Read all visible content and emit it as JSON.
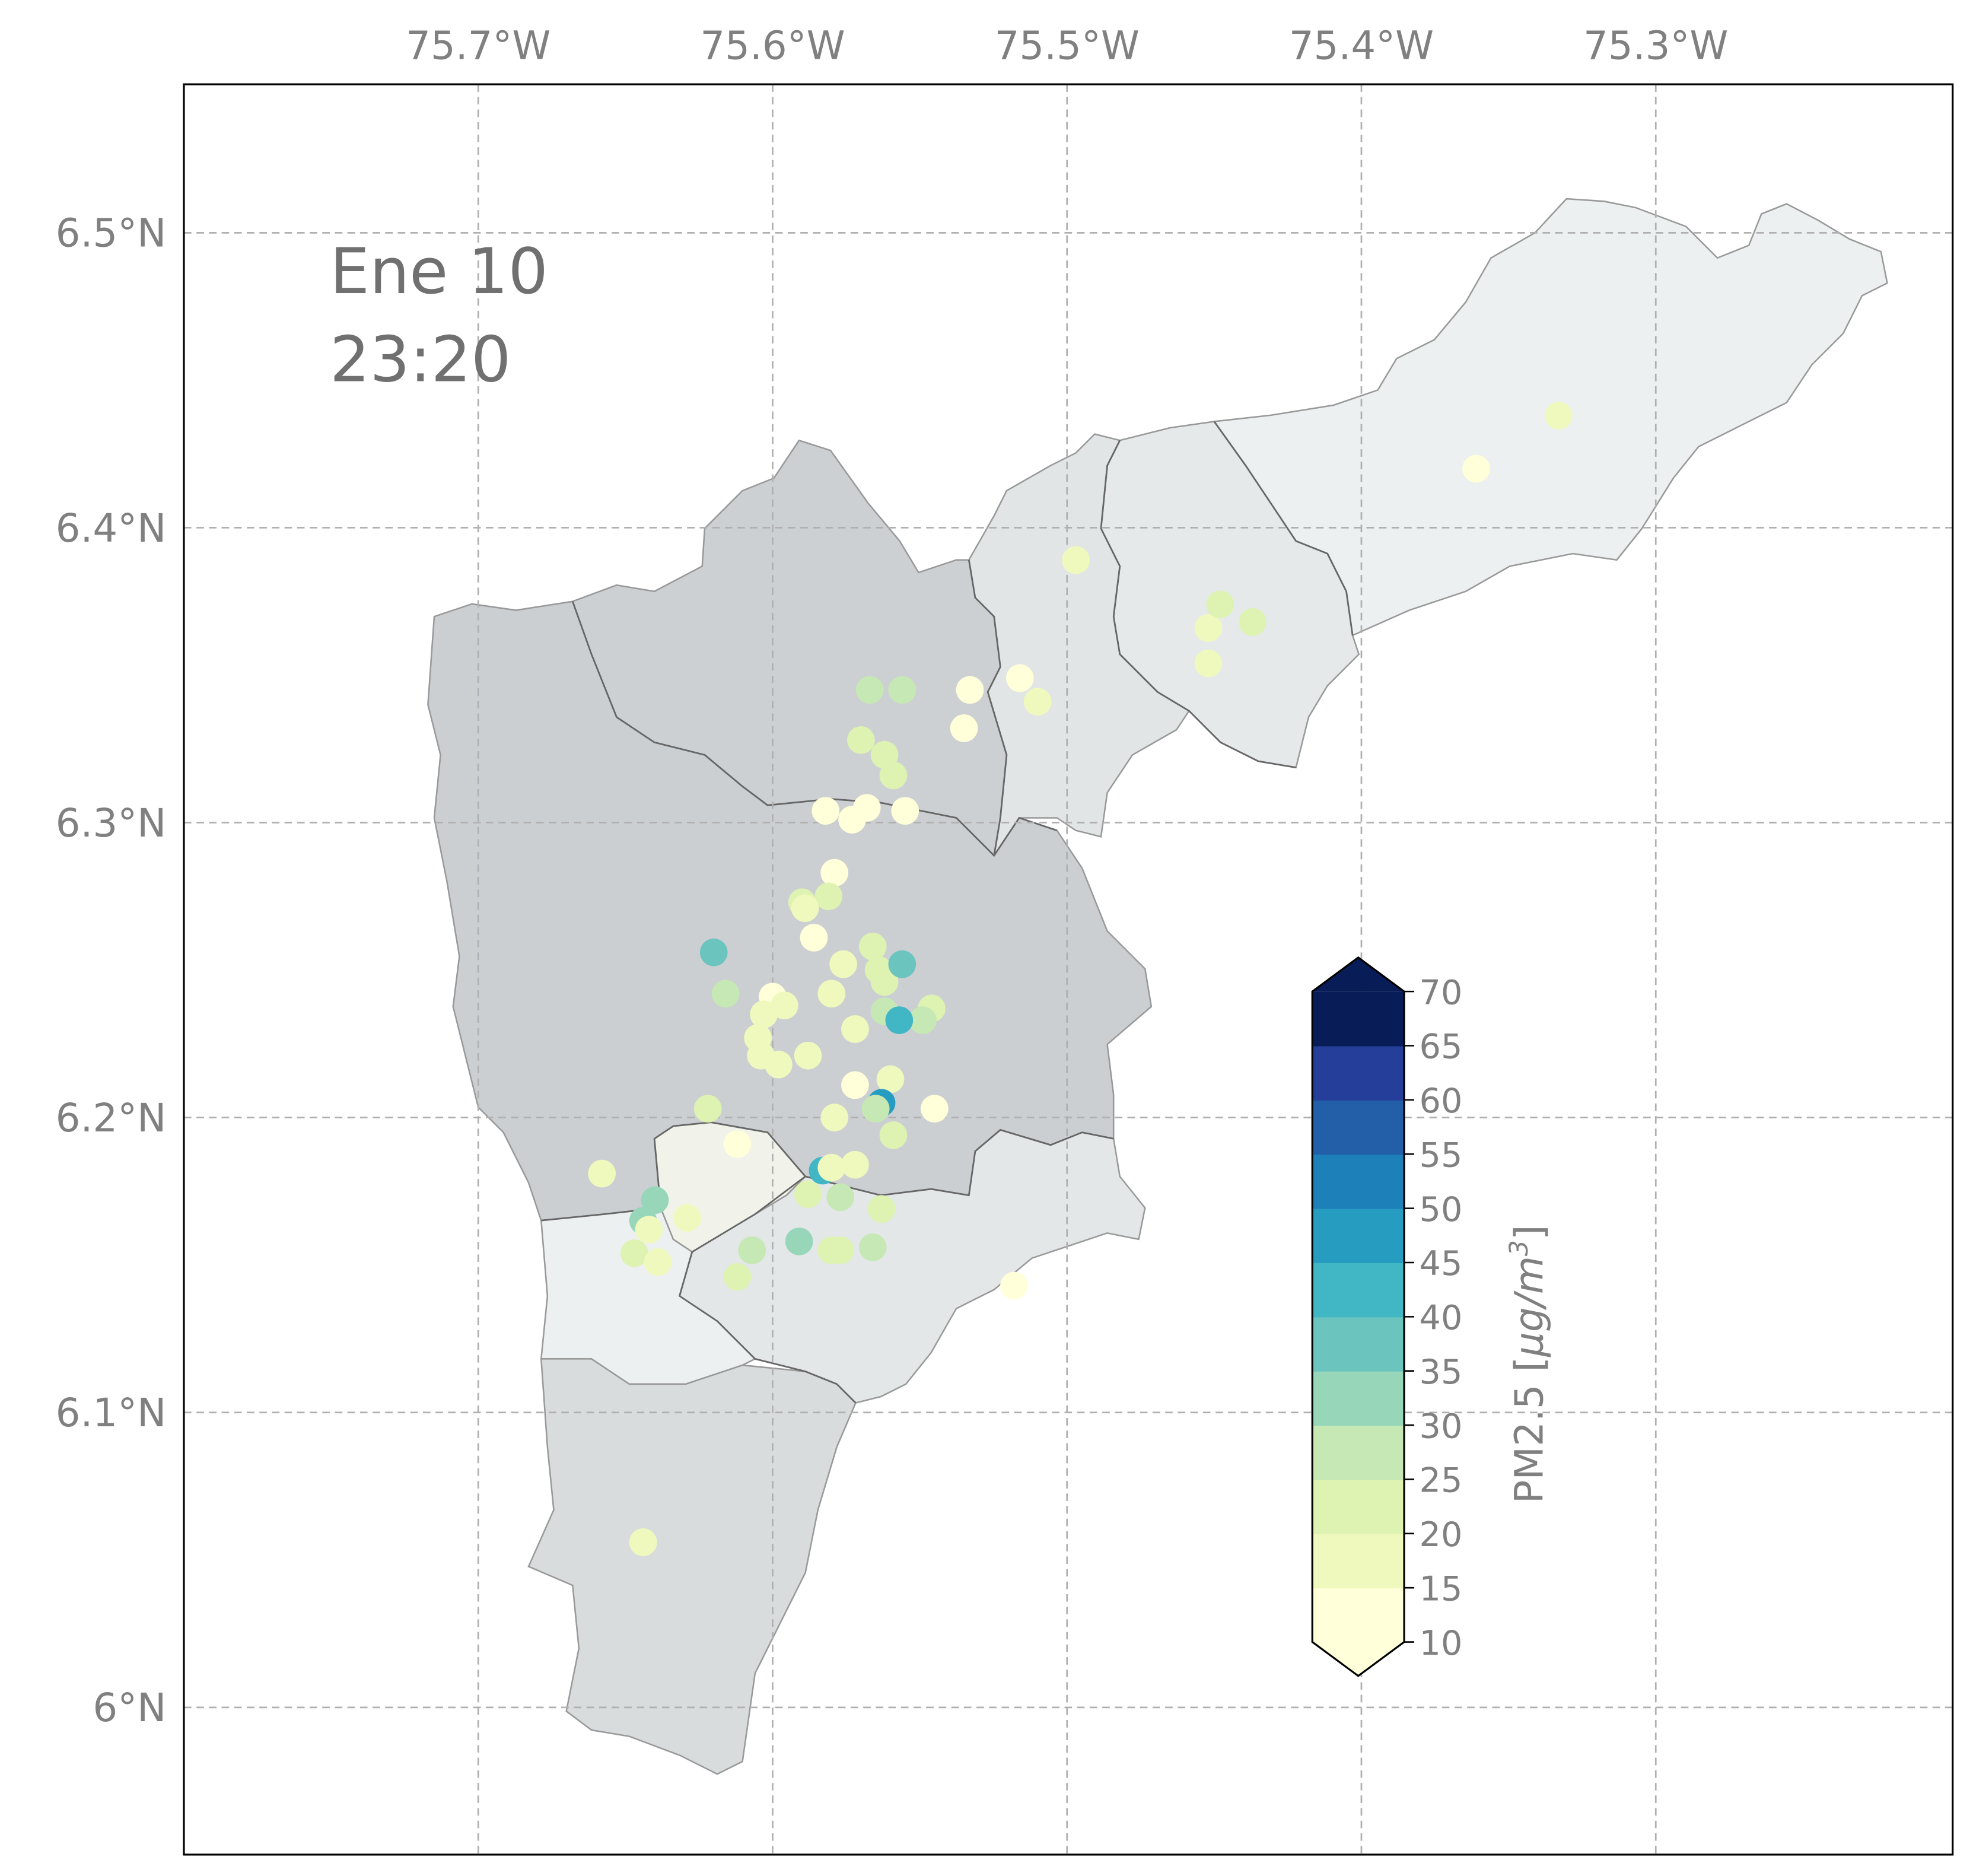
{
  "annotation": {
    "date": "Ene 10",
    "time": "23:20"
  },
  "axes": {
    "lon_ticks": [
      {
        "value": -75.7,
        "label": "75.7°W"
      },
      {
        "value": -75.6,
        "label": "75.6°W"
      },
      {
        "value": -75.5,
        "label": "75.5°W"
      },
      {
        "value": -75.4,
        "label": "75.4°W"
      },
      {
        "value": -75.3,
        "label": "75.3°W"
      }
    ],
    "lat_ticks": [
      {
        "value": 6.5,
        "label": "6.5°N"
      },
      {
        "value": 6.4,
        "label": "6.4°N"
      },
      {
        "value": 6.3,
        "label": "6.3°N"
      },
      {
        "value": 6.2,
        "label": "6.2°N"
      },
      {
        "value": 6.1,
        "label": "6.1°N"
      },
      {
        "value": 6.0,
        "label": "6°N"
      }
    ],
    "lon_range": [
      -75.8,
      -75.2
    ],
    "lat_range": [
      5.95,
      6.55
    ],
    "grid": true
  },
  "colorbar": {
    "label": "PM2.5 [μg/m³]",
    "label_main": "PM2.5 [",
    "label_unit": "μg/m",
    "label_sup": "3",
    "label_end": "]",
    "levels": [
      10,
      15,
      20,
      25,
      30,
      35,
      40,
      45,
      50,
      55,
      60,
      65,
      70
    ],
    "tick_labels": [
      "10",
      "15",
      "20",
      "25",
      "30",
      "35",
      "40",
      "45",
      "50",
      "55",
      "60",
      "65",
      "70"
    ],
    "colors": [
      "#ffffd9",
      "#f0f9bd",
      "#def2b2",
      "#c6e8b4",
      "#98d6b9",
      "#6bc4be",
      "#41b6c4",
      "#279cc1",
      "#1e80b8",
      "#225fa8",
      "#243e99",
      "#081d58"
    ],
    "extend": "both",
    "over_color": "#081d58",
    "under_color": "#ffffd9"
  },
  "regions_colors": [
    "#cdd0d3",
    "#e3e6e7",
    "#e8ebec",
    "#edf0f1",
    "#f2f4ea",
    "#eef1f2",
    "#e5e8e9",
    "#dadddf"
  ],
  "stations": [
    {
      "lon": -75.361,
      "lat": 6.42,
      "pm": 12
    },
    {
      "lon": -75.333,
      "lat": 6.438,
      "pm": 17
    },
    {
      "lon": -75.497,
      "lat": 6.389,
      "pm": 17
    },
    {
      "lon": -75.452,
      "lat": 6.366,
      "pm": 17
    },
    {
      "lon": -75.448,
      "lat": 6.374,
      "pm": 22
    },
    {
      "lon": -75.437,
      "lat": 6.368,
      "pm": 22
    },
    {
      "lon": -75.452,
      "lat": 6.354,
      "pm": 17
    },
    {
      "lon": -75.533,
      "lat": 6.345,
      "pm": 12
    },
    {
      "lon": -75.516,
      "lat": 6.349,
      "pm": 12
    },
    {
      "lon": -75.51,
      "lat": 6.341,
      "pm": 17
    },
    {
      "lon": -75.535,
      "lat": 6.332,
      "pm": 12
    },
    {
      "lon": -75.567,
      "lat": 6.345,
      "pm": 27
    },
    {
      "lon": -75.556,
      "lat": 6.345,
      "pm": 27
    },
    {
      "lon": -75.57,
      "lat": 6.328,
      "pm": 22
    },
    {
      "lon": -75.562,
      "lat": 6.323,
      "pm": 22
    },
    {
      "lon": -75.559,
      "lat": 6.316,
      "pm": 22
    },
    {
      "lon": -75.582,
      "lat": 6.304,
      "pm": 12
    },
    {
      "lon": -75.568,
      "lat": 6.305,
      "pm": 12
    },
    {
      "lon": -75.573,
      "lat": 6.301,
      "pm": 12
    },
    {
      "lon": -75.555,
      "lat": 6.304,
      "pm": 12
    },
    {
      "lon": -75.579,
      "lat": 6.283,
      "pm": 12
    },
    {
      "lon": -75.59,
      "lat": 6.273,
      "pm": 22
    },
    {
      "lon": -75.581,
      "lat": 6.275,
      "pm": 22
    },
    {
      "lon": -75.589,
      "lat": 6.271,
      "pm": 17
    },
    {
      "lon": -75.586,
      "lat": 6.261,
      "pm": 12
    },
    {
      "lon": -75.566,
      "lat": 6.258,
      "pm": 22
    },
    {
      "lon": -75.576,
      "lat": 6.252,
      "pm": 17
    },
    {
      "lon": -75.564,
      "lat": 6.25,
      "pm": 22
    },
    {
      "lon": -75.562,
      "lat": 6.246,
      "pm": 22
    },
    {
      "lon": -75.62,
      "lat": 6.256,
      "pm": 37
    },
    {
      "lon": -75.556,
      "lat": 6.252,
      "pm": 37
    },
    {
      "lon": -75.616,
      "lat": 6.242,
      "pm": 27
    },
    {
      "lon": -75.58,
      "lat": 6.242,
      "pm": 17
    },
    {
      "lon": -75.546,
      "lat": 6.237,
      "pm": 22
    },
    {
      "lon": -75.549,
      "lat": 6.233,
      "pm": 27
    },
    {
      "lon": -75.562,
      "lat": 6.236,
      "pm": 27
    },
    {
      "lon": -75.557,
      "lat": 6.233,
      "pm": 42
    },
    {
      "lon": -75.6,
      "lat": 6.241,
      "pm": 12
    },
    {
      "lon": -75.596,
      "lat": 6.238,
      "pm": 17
    },
    {
      "lon": -75.603,
      "lat": 6.235,
      "pm": 17
    },
    {
      "lon": -75.572,
      "lat": 6.23,
      "pm": 17
    },
    {
      "lon": -75.605,
      "lat": 6.227,
      "pm": 17
    },
    {
      "lon": -75.604,
      "lat": 6.221,
      "pm": 17
    },
    {
      "lon": -75.598,
      "lat": 6.218,
      "pm": 17
    },
    {
      "lon": -75.588,
      "lat": 6.221,
      "pm": 17
    },
    {
      "lon": -75.572,
      "lat": 6.211,
      "pm": 12
    },
    {
      "lon": -75.56,
      "lat": 6.213,
      "pm": 17
    },
    {
      "lon": -75.563,
      "lat": 6.205,
      "pm": 47
    },
    {
      "lon": -75.565,
      "lat": 6.203,
      "pm": 27
    },
    {
      "lon": -75.579,
      "lat": 6.2,
      "pm": 17
    },
    {
      "lon": -75.559,
      "lat": 6.194,
      "pm": 22
    },
    {
      "lon": -75.545,
      "lat": 6.203,
      "pm": 12
    },
    {
      "lon": -75.622,
      "lat": 6.203,
      "pm": 22
    },
    {
      "lon": -75.612,
      "lat": 6.191,
      "pm": 12
    },
    {
      "lon": -75.583,
      "lat": 6.182,
      "pm": 42
    },
    {
      "lon": -75.58,
      "lat": 6.183,
      "pm": 17
    },
    {
      "lon": -75.572,
      "lat": 6.184,
      "pm": 17
    },
    {
      "lon": -75.577,
      "lat": 6.173,
      "pm": 27
    },
    {
      "lon": -75.588,
      "lat": 6.174,
      "pm": 22
    },
    {
      "lon": -75.563,
      "lat": 6.169,
      "pm": 22
    },
    {
      "lon": -75.658,
      "lat": 6.181,
      "pm": 17
    },
    {
      "lon": -75.64,
      "lat": 6.172,
      "pm": 32
    },
    {
      "lon": -75.644,
      "lat": 6.165,
      "pm": 32
    },
    {
      "lon": -75.642,
      "lat": 6.162,
      "pm": 17
    },
    {
      "lon": -75.629,
      "lat": 6.166,
      "pm": 17
    },
    {
      "lon": -75.647,
      "lat": 6.154,
      "pm": 22
    },
    {
      "lon": -75.639,
      "lat": 6.151,
      "pm": 17
    },
    {
      "lon": -75.607,
      "lat": 6.155,
      "pm": 27
    },
    {
      "lon": -75.591,
      "lat": 6.158,
      "pm": 32
    },
    {
      "lon": -75.58,
      "lat": 6.155,
      "pm": 22
    },
    {
      "lon": -75.577,
      "lat": 6.155,
      "pm": 22
    },
    {
      "lon": -75.566,
      "lat": 6.156,
      "pm": 27
    },
    {
      "lon": -75.612,
      "lat": 6.146,
      "pm": 22
    },
    {
      "lon": -75.518,
      "lat": 6.143,
      "pm": 12
    },
    {
      "lon": -75.644,
      "lat": 6.056,
      "pm": 17
    }
  ]
}
